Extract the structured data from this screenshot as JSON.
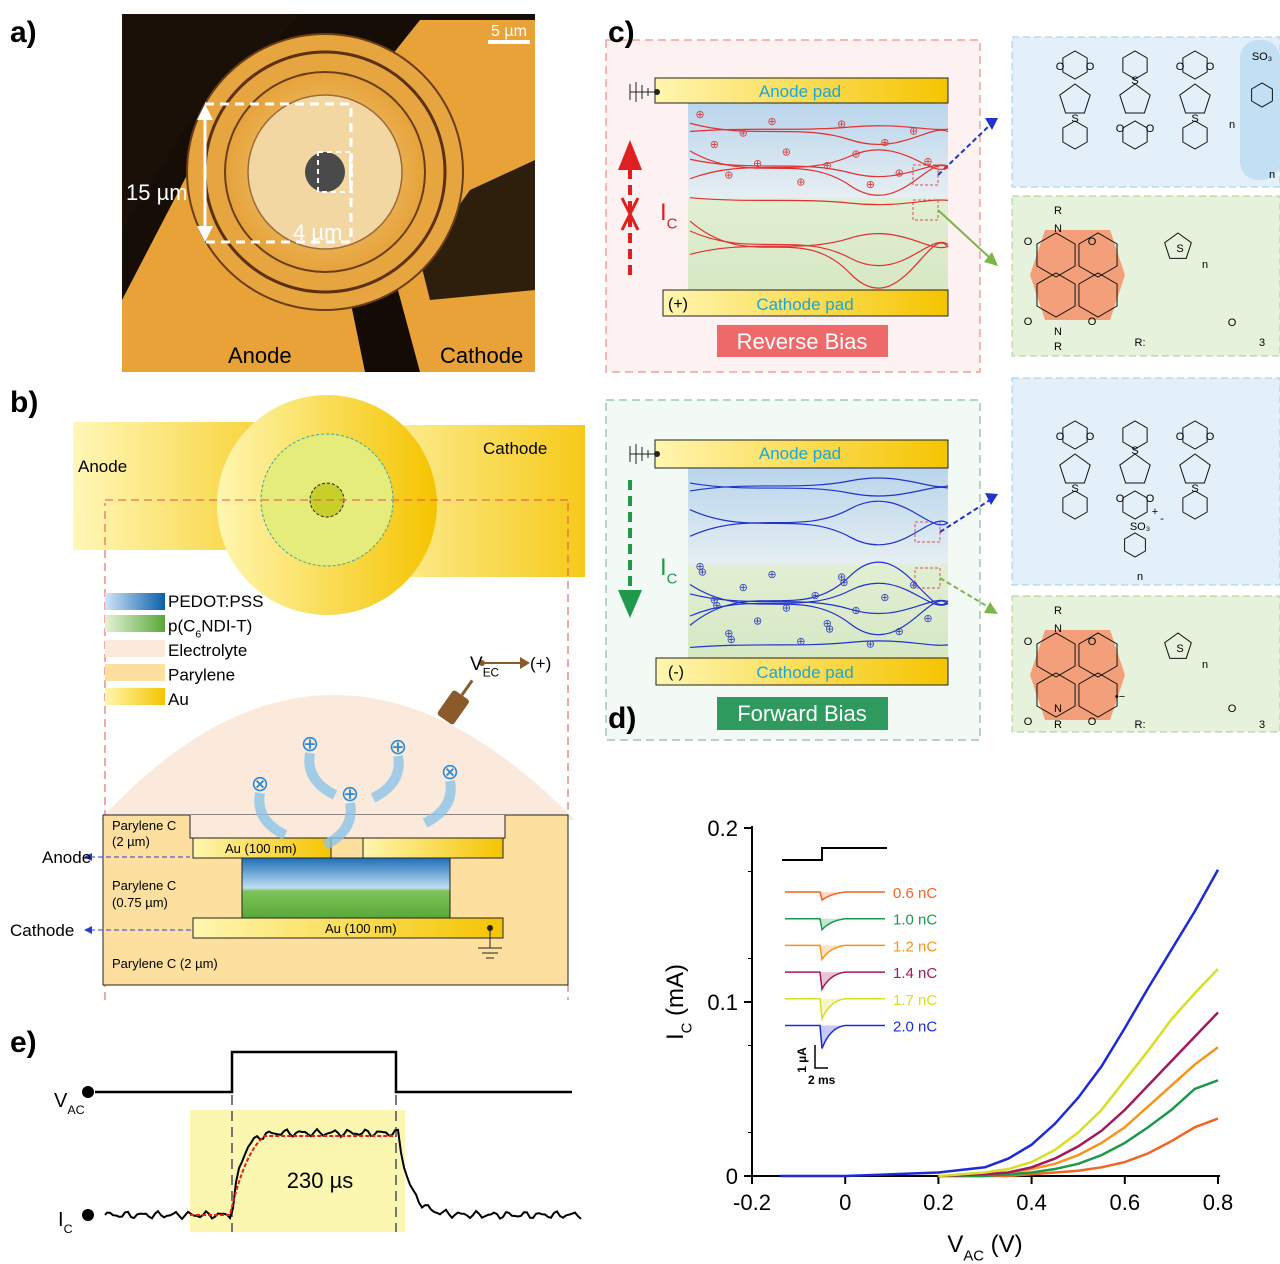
{
  "panel_a": {
    "label": "a)",
    "scale": "5 µm",
    "outer": "15 µm",
    "inner": "4 µm",
    "anode": "Anode",
    "cathode": "Cathode"
  },
  "panel_b": {
    "label": "b)",
    "anode": "Anode",
    "cathode": "Cathode",
    "legend": [
      [
        "PEDOT:PSS"
      ],
      [
        "p(C",
        "6",
        "NDI-T)"
      ],
      [
        "Electrolyte"
      ],
      [
        "Parylene"
      ],
      [
        "Au"
      ]
    ],
    "vec": [
      "V",
      "EC"
    ],
    "vec_sign": "(+)",
    "par_top": [
      "Parylene C",
      "(2 µm)"
    ],
    "au_top": "Au (100 nm)",
    "par_mid": [
      "Parylene C",
      "(0.75 µm)"
    ],
    "au_bottom": "Au (100 nm)",
    "par_bottom": "Parylene C (2 µm)",
    "out_anode": "Anode",
    "out_cathode": "Cathode"
  },
  "panel_c": {
    "label": "c)",
    "reverse": {
      "anode_pad": "Anode pad",
      "cathode_pad": "Cathode pad",
      "sign": "(+)",
      "bias": "Reverse Bias",
      "current": [
        "I",
        "C"
      ]
    },
    "forward": {
      "anode_pad": "Anode pad",
      "cathode_pad": "Cathode pad",
      "sign": "(-)",
      "bias": "Forward Bias",
      "current": [
        "I",
        "C"
      ]
    },
    "mol1": [
      "S",
      "S",
      "S",
      "O",
      "O",
      "O",
      "O",
      "O",
      "O",
      "n",
      "SO₃",
      "n"
    ],
    "mol2": [
      "R",
      "N",
      "O",
      "O",
      "S",
      "n",
      "O",
      "O",
      "N",
      "R",
      "R:",
      "O",
      "3"
    ],
    "mol3": [
      "S",
      "S",
      "S",
      "O",
      "O",
      "O",
      "O",
      "O",
      "O",
      "+",
      "SO₃",
      "-",
      "n"
    ],
    "mol4": [
      "R",
      "N",
      "O",
      "O",
      "S",
      "n",
      "•−",
      "O",
      "O",
      "N",
      "R",
      "R:",
      "O",
      "3"
    ]
  },
  "panel_d": {
    "label": "d)",
    "scale_y": "1 µA",
    "scale_x": "2 ms"
  },
  "panel_e": {
    "label": "e)",
    "vac": [
      "V",
      "AC"
    ],
    "ic": [
      "I",
      "C"
    ],
    "time": "230 µs"
  },
  "chart_data": {
    "type": "line",
    "xlabel": [
      "V",
      "AC",
      " (V)"
    ],
    "ylabel": [
      "I",
      "C",
      " (mA)"
    ],
    "x": [
      -0.14,
      -0.1,
      0,
      0.1,
      0.2,
      0.3,
      0.35,
      0.4,
      0.45,
      0.5,
      0.55,
      0.6,
      0.65,
      0.7,
      0.75,
      0.8
    ],
    "series": [
      {
        "name": "0.6 nC",
        "color": "#f26522",
        "values": [
          null,
          null,
          null,
          null,
          0,
          0,
          0,
          0.001,
          0.002,
          0.003,
          0.005,
          0.008,
          0.013,
          0.02,
          0.028,
          0.033
        ]
      },
      {
        "name": "1.0 nC",
        "color": "#1a9a4a",
        "values": [
          null,
          null,
          null,
          null,
          0,
          0,
          0.001,
          0.002,
          0.004,
          0.007,
          0.012,
          0.019,
          0.028,
          0.038,
          0.05,
          0.055
        ]
      },
      {
        "name": "1.2 nC",
        "color": "#f7941d",
        "values": [
          null,
          null,
          null,
          null,
          0,
          0.001,
          0.002,
          0.004,
          0.007,
          0.012,
          0.019,
          0.028,
          0.04,
          0.052,
          0.064,
          0.074
        ]
      },
      {
        "name": "1.4 nC",
        "color": "#a3195b",
        "values": [
          null,
          null,
          null,
          null,
          0,
          0.001,
          0.002,
          0.005,
          0.01,
          0.017,
          0.026,
          0.038,
          0.052,
          0.066,
          0.08,
          0.094
        ]
      },
      {
        "name": "1.7 nC",
        "color": "#d7df23",
        "values": [
          null,
          null,
          null,
          null,
          0,
          0.002,
          0.004,
          0.008,
          0.015,
          0.025,
          0.038,
          0.055,
          0.072,
          0.09,
          0.105,
          0.119
        ]
      },
      {
        "name": "2.0 nC",
        "color": "#1c2bd6",
        "values": [
          0,
          0,
          0,
          0.001,
          0.002,
          0.005,
          0.01,
          0.018,
          0.03,
          0.045,
          0.063,
          0.085,
          0.108,
          0.13,
          0.152,
          0.176
        ]
      }
    ],
    "xlim": [
      -0.2,
      0.8
    ],
    "xticks": [
      -0.2,
      0,
      0.2,
      0.4,
      0.6,
      0.8
    ],
    "ylim": [
      0,
      0.2
    ],
    "yticks": [
      0,
      0.1,
      0.2
    ]
  }
}
